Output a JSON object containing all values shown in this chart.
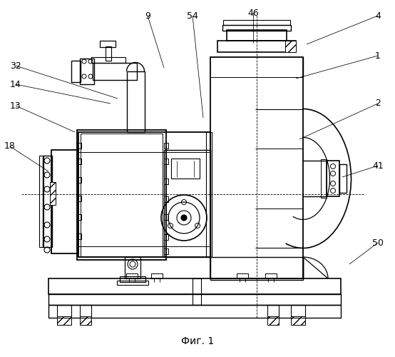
{
  "bg_color": "#ffffff",
  "line_color": "#000000",
  "fig_width": 5.54,
  "fig_height": 5.0,
  "dpi": 100,
  "caption": "Фиг. 1",
  "labels": [
    [
      "9",
      207,
      22,
      230,
      95
    ],
    [
      "54",
      270,
      22,
      285,
      165
    ],
    [
      "46",
      355,
      18,
      355,
      60
    ],
    [
      "4",
      530,
      22,
      430,
      62
    ],
    [
      "32",
      22,
      92,
      165,
      138
    ],
    [
      "14",
      22,
      118,
      155,
      145
    ],
    [
      "13",
      22,
      148,
      105,
      185
    ],
    [
      "18",
      14,
      205,
      68,
      240
    ],
    [
      "1",
      530,
      78,
      415,
      110
    ],
    [
      "2",
      530,
      145,
      420,
      195
    ],
    [
      "41",
      530,
      232,
      480,
      248
    ],
    [
      "50",
      530,
      340,
      490,
      370
    ]
  ]
}
